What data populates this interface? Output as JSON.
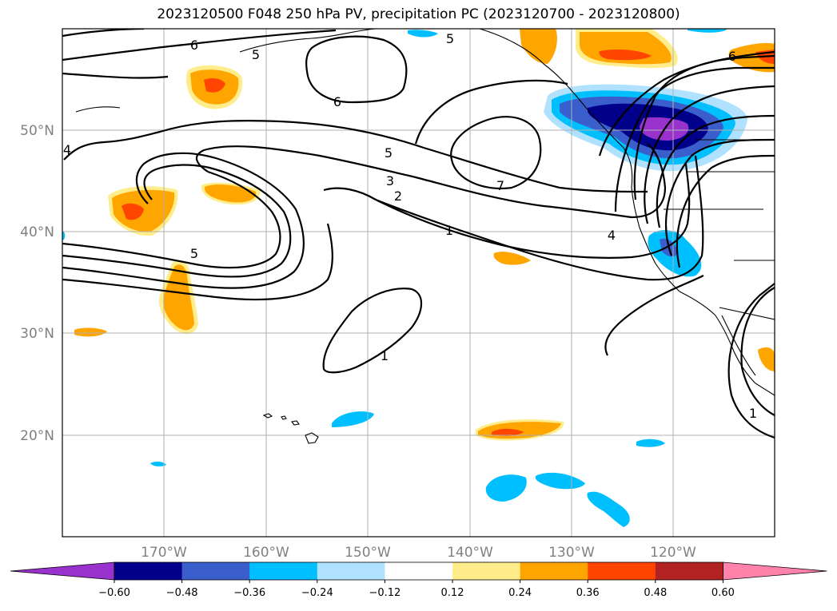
{
  "title": "2023120500 F048 250 hPa PV, precipitation PC (2023120700 - 2023120800)",
  "map": {
    "lat_labels": [
      "50°N",
      "40°N",
      "30°N",
      "20°N"
    ],
    "lon_labels": [
      "170°W",
      "160°W",
      "150°W",
      "140°W",
      "130°W",
      "120°W"
    ],
    "contour_labels": [
      "6",
      "5",
      "6",
      "5",
      "4",
      "5",
      "3",
      "2",
      "1",
      "7",
      "4",
      "6",
      "5",
      "1",
      "1"
    ]
  },
  "colorbar": {
    "ticks": [
      "−0.60",
      "−0.48",
      "−0.36",
      "−0.24",
      "−0.12",
      "0.12",
      "0.24",
      "0.36",
      "0.48",
      "0.60"
    ],
    "colors": [
      "#9932cc",
      "#00008b",
      "#3a5fcd",
      "#00bfff",
      "#b0e2ff",
      "#ffffff",
      "#ffec8b",
      "#ffa500",
      "#ff4500",
      "#b22222",
      "#ff82ab"
    ]
  }
}
